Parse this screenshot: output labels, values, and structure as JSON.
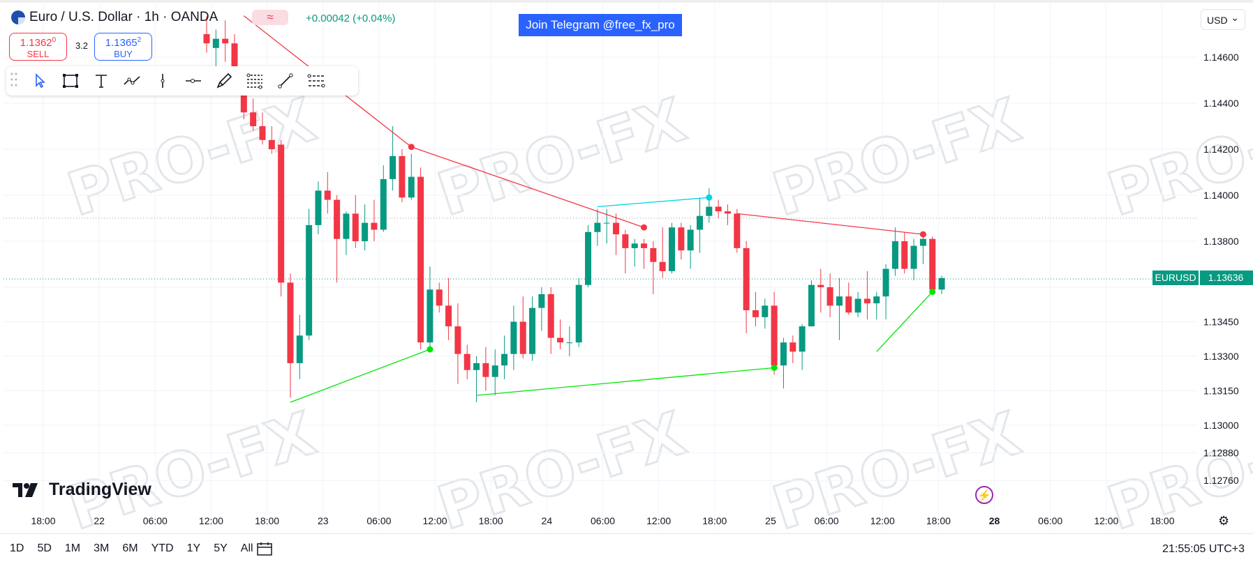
{
  "header": {
    "symbol_title": "Euro / U.S. Dollar · 1h · OANDA",
    "change": "+0.00042 (+0.04%)",
    "badge": "≈",
    "sell": {
      "price": "1.1362",
      "sup": "0",
      "label": "SELL"
    },
    "spread": "3.2",
    "buy": {
      "price": "1.1365",
      "sup": "2",
      "label": "BUY"
    }
  },
  "banner": "Join Telegram @free_fx_pro",
  "currency": "USD",
  "watermark": "PRO-FX",
  "brand": "TradingView",
  "price_tag": {
    "symbol": "EURUSD",
    "price": "1.13636"
  },
  "bottom": {
    "ranges": [
      "1D",
      "5D",
      "1M",
      "3M",
      "6M",
      "YTD",
      "1Y",
      "5Y",
      "All"
    ],
    "clock": "21:55:05 UTC+3"
  },
  "tools": [
    "cursor-icon",
    "rectangle-icon",
    "text-icon",
    "path-icon",
    "vertical-line-icon",
    "horizontal-ray-icon",
    "brush-icon",
    "fib-retracement-icon",
    "trend-line-icon",
    "parallel-channel-icon"
  ],
  "colors": {
    "up": "#089981",
    "down": "#f23645",
    "green_line": "#00e600",
    "red_line": "#f23645",
    "cyan_line": "#00d4e6"
  },
  "chart_data": {
    "type": "candlestick",
    "x_ticks": [
      "18:00",
      "22",
      "06:00",
      "12:00",
      "18:00",
      "23",
      "06:00",
      "12:00",
      "18:00",
      "24",
      "06:00",
      "12:00",
      "18:00",
      "25",
      "06:00",
      "12:00",
      "18:00",
      "28",
      "06:00",
      "12:00",
      "18:00"
    ],
    "y_ticks": [
      1.146,
      1.144,
      1.142,
      1.14,
      1.138,
      1.136,
      1.1345,
      1.133,
      1.1315,
      1.13,
      1.1288,
      1.1276
    ],
    "ylim": [
      1.1265,
      1.1475
    ],
    "last_price": 1.13636,
    "candles": [
      {
        "o": 1.147,
        "h": 1.1478,
        "l": 1.1462,
        "c": 1.1466
      },
      {
        "o": 1.1464,
        "h": 1.1472,
        "l": 1.1455,
        "c": 1.1468
      },
      {
        "o": 1.1468,
        "h": 1.1476,
        "l": 1.1458,
        "c": 1.1466
      },
      {
        "o": 1.1466,
        "h": 1.147,
        "l": 1.1448,
        "c": 1.1452
      },
      {
        "o": 1.1452,
        "h": 1.1456,
        "l": 1.1433,
        "c": 1.1436
      },
      {
        "o": 1.1436,
        "h": 1.1442,
        "l": 1.1428,
        "c": 1.143
      },
      {
        "o": 1.143,
        "h": 1.1436,
        "l": 1.1422,
        "c": 1.1424
      },
      {
        "o": 1.1424,
        "h": 1.143,
        "l": 1.1418,
        "c": 1.142
      },
      {
        "o": 1.1422,
        "h": 1.1424,
        "l": 1.1356,
        "c": 1.1362
      },
      {
        "o": 1.1362,
        "h": 1.1366,
        "l": 1.1312,
        "c": 1.1327
      },
      {
        "o": 1.1327,
        "h": 1.1348,
        "l": 1.132,
        "c": 1.1339
      },
      {
        "o": 1.1339,
        "h": 1.1394,
        "l": 1.1337,
        "c": 1.1387
      },
      {
        "o": 1.1387,
        "h": 1.1406,
        "l": 1.1383,
        "c": 1.1402
      },
      {
        "o": 1.1402,
        "h": 1.141,
        "l": 1.1392,
        "c": 1.1398
      },
      {
        "o": 1.1398,
        "h": 1.14,
        "l": 1.1362,
        "c": 1.1381
      },
      {
        "o": 1.1381,
        "h": 1.1393,
        "l": 1.1374,
        "c": 1.1392
      },
      {
        "o": 1.1392,
        "h": 1.14,
        "l": 1.1377,
        "c": 1.138
      },
      {
        "o": 1.138,
        "h": 1.1396,
        "l": 1.1376,
        "c": 1.1388
      },
      {
        "o": 1.1388,
        "h": 1.1398,
        "l": 1.138,
        "c": 1.1385
      },
      {
        "o": 1.1385,
        "h": 1.1413,
        "l": 1.1384,
        "c": 1.1407
      },
      {
        "o": 1.1407,
        "h": 1.143,
        "l": 1.1402,
        "c": 1.1417
      },
      {
        "o": 1.1417,
        "h": 1.142,
        "l": 1.1397,
        "c": 1.1399
      },
      {
        "o": 1.1399,
        "h": 1.1418,
        "l": 1.1398,
        "c": 1.1408
      },
      {
        "o": 1.1408,
        "h": 1.1412,
        "l": 1.1333,
        "c": 1.1336
      },
      {
        "o": 1.1336,
        "h": 1.1369,
        "l": 1.1333,
        "c": 1.1359
      },
      {
        "o": 1.1359,
        "h": 1.1362,
        "l": 1.1349,
        "c": 1.1352
      },
      {
        "o": 1.1352,
        "h": 1.1364,
        "l": 1.1337,
        "c": 1.1343
      },
      {
        "o": 1.1343,
        "h": 1.1353,
        "l": 1.1318,
        "c": 1.1331
      },
      {
        "o": 1.1331,
        "h": 1.1335,
        "l": 1.132,
        "c": 1.1324
      },
      {
        "o": 1.1324,
        "h": 1.133,
        "l": 1.131,
        "c": 1.1327
      },
      {
        "o": 1.1327,
        "h": 1.1334,
        "l": 1.1315,
        "c": 1.1321
      },
      {
        "o": 1.1321,
        "h": 1.1333,
        "l": 1.1313,
        "c": 1.1326
      },
      {
        "o": 1.1326,
        "h": 1.1339,
        "l": 1.132,
        "c": 1.1331
      },
      {
        "o": 1.1331,
        "h": 1.1352,
        "l": 1.1324,
        "c": 1.1345
      },
      {
        "o": 1.1345,
        "h": 1.1356,
        "l": 1.1329,
        "c": 1.1331
      },
      {
        "o": 1.1331,
        "h": 1.1356,
        "l": 1.1328,
        "c": 1.1351
      },
      {
        "o": 1.1351,
        "h": 1.136,
        "l": 1.1341,
        "c": 1.1357
      },
      {
        "o": 1.1357,
        "h": 1.136,
        "l": 1.1331,
        "c": 1.1338
      },
      {
        "o": 1.1338,
        "h": 1.1346,
        "l": 1.1333,
        "c": 1.1336
      },
      {
        "o": 1.1336,
        "h": 1.1343,
        "l": 1.133,
        "c": 1.1336
      },
      {
        "o": 1.1336,
        "h": 1.1364,
        "l": 1.1334,
        "c": 1.1361
      },
      {
        "o": 1.1361,
        "h": 1.1387,
        "l": 1.136,
        "c": 1.1384
      },
      {
        "o": 1.1384,
        "h": 1.1394,
        "l": 1.1378,
        "c": 1.1388
      },
      {
        "o": 1.1388,
        "h": 1.1394,
        "l": 1.1379,
        "c": 1.1388
      },
      {
        "o": 1.1388,
        "h": 1.1392,
        "l": 1.1374,
        "c": 1.1383
      },
      {
        "o": 1.1383,
        "h": 1.1385,
        "l": 1.1366,
        "c": 1.1377
      },
      {
        "o": 1.1377,
        "h": 1.1381,
        "l": 1.1369,
        "c": 1.1379
      },
      {
        "o": 1.1379,
        "h": 1.1381,
        "l": 1.1368,
        "c": 1.1377
      },
      {
        "o": 1.1377,
        "h": 1.138,
        "l": 1.1357,
        "c": 1.1371
      },
      {
        "o": 1.1371,
        "h": 1.1386,
        "l": 1.1364,
        "c": 1.1367
      },
      {
        "o": 1.1367,
        "h": 1.1388,
        "l": 1.1366,
        "c": 1.1386
      },
      {
        "o": 1.1386,
        "h": 1.1388,
        "l": 1.1372,
        "c": 1.1376
      },
      {
        "o": 1.1376,
        "h": 1.1387,
        "l": 1.1368,
        "c": 1.1385
      },
      {
        "o": 1.1385,
        "h": 1.1399,
        "l": 1.1375,
        "c": 1.1391
      },
      {
        "o": 1.1391,
        "h": 1.1403,
        "l": 1.1388,
        "c": 1.1395
      },
      {
        "o": 1.1395,
        "h": 1.1398,
        "l": 1.139,
        "c": 1.1393
      },
      {
        "o": 1.1393,
        "h": 1.1396,
        "l": 1.1387,
        "c": 1.1392
      },
      {
        "o": 1.1392,
        "h": 1.1394,
        "l": 1.1375,
        "c": 1.1377
      },
      {
        "o": 1.1377,
        "h": 1.138,
        "l": 1.134,
        "c": 1.135
      },
      {
        "o": 1.135,
        "h": 1.1358,
        "l": 1.1343,
        "c": 1.1347
      },
      {
        "o": 1.1347,
        "h": 1.1355,
        "l": 1.1342,
        "c": 1.1352
      },
      {
        "o": 1.1352,
        "h": 1.1358,
        "l": 1.1322,
        "c": 1.1326
      },
      {
        "o": 1.1326,
        "h": 1.1338,
        "l": 1.1316,
        "c": 1.1336
      },
      {
        "o": 1.1336,
        "h": 1.1339,
        "l": 1.1327,
        "c": 1.1332
      },
      {
        "o": 1.1332,
        "h": 1.1344,
        "l": 1.1324,
        "c": 1.1343
      },
      {
        "o": 1.1343,
        "h": 1.1363,
        "l": 1.1343,
        "c": 1.1361
      },
      {
        "o": 1.1361,
        "h": 1.1368,
        "l": 1.1349,
        "c": 1.136
      },
      {
        "o": 1.136,
        "h": 1.1366,
        "l": 1.1347,
        "c": 1.1352
      },
      {
        "o": 1.1352,
        "h": 1.1364,
        "l": 1.1337,
        "c": 1.1356
      },
      {
        "o": 1.1356,
        "h": 1.1362,
        "l": 1.1348,
        "c": 1.1349
      },
      {
        "o": 1.1349,
        "h": 1.1358,
        "l": 1.1347,
        "c": 1.1355
      },
      {
        "o": 1.1355,
        "h": 1.1367,
        "l": 1.1346,
        "c": 1.1353
      },
      {
        "o": 1.1353,
        "h": 1.1358,
        "l": 1.1346,
        "c": 1.1356
      },
      {
        "o": 1.1356,
        "h": 1.137,
        "l": 1.1346,
        "c": 1.1368
      },
      {
        "o": 1.1368,
        "h": 1.1386,
        "l": 1.1365,
        "c": 1.138
      },
      {
        "o": 1.138,
        "h": 1.1384,
        "l": 1.1366,
        "c": 1.1368
      },
      {
        "o": 1.1368,
        "h": 1.1381,
        "l": 1.1363,
        "c": 1.1378
      },
      {
        "o": 1.1378,
        "h": 1.1383,
        "l": 1.137,
        "c": 1.1381
      },
      {
        "o": 1.1381,
        "h": 1.1382,
        "l": 1.1358,
        "c": 1.1359
      },
      {
        "o": 1.1359,
        "h": 1.1365,
        "l": 1.1357,
        "c": 1.1364
      }
    ],
    "drawings": [
      {
        "kind": "trend",
        "color": "red",
        "from": {
          "i": 4,
          "p": 1.1478
        },
        "to": {
          "i": 22,
          "p": 1.1421
        }
      },
      {
        "kind": "trend",
        "color": "red",
        "from": {
          "i": 22,
          "p": 1.1421
        },
        "to": {
          "i": 47,
          "p": 1.1386
        }
      },
      {
        "kind": "trend",
        "color": "red",
        "from": {
          "i": 57,
          "p": 1.1392
        },
        "to": {
          "i": 77,
          "p": 1.1383
        }
      },
      {
        "kind": "trend",
        "color": "cyan",
        "from": {
          "i": 42,
          "p": 1.1395
        },
        "to": {
          "i": 54,
          "p": 1.1399
        }
      },
      {
        "kind": "trend",
        "color": "green",
        "from": {
          "i": 9,
          "p": 1.131
        },
        "to": {
          "i": 24,
          "p": 1.1333
        }
      },
      {
        "kind": "trend",
        "color": "green",
        "from": {
          "i": 29,
          "p": 1.1313
        },
        "to": {
          "i": 61,
          "p": 1.1325
        }
      },
      {
        "kind": "trend",
        "color": "green",
        "from": {
          "i": 72,
          "p": 1.1332
        },
        "to": {
          "i": 78,
          "p": 1.1358
        }
      }
    ],
    "markers": [
      {
        "color": "red",
        "i": 22,
        "p": 1.1421
      },
      {
        "color": "red",
        "i": 47,
        "p": 1.1386
      },
      {
        "color": "red",
        "i": 77,
        "p": 1.1383
      },
      {
        "color": "cyan",
        "i": 54,
        "p": 1.1399
      },
      {
        "color": "green",
        "i": 24,
        "p": 1.1333
      },
      {
        "color": "green",
        "i": 61,
        "p": 1.1325
      },
      {
        "color": "green",
        "i": 78,
        "p": 1.1358
      }
    ],
    "ref_levels": [
      1.139
    ]
  }
}
